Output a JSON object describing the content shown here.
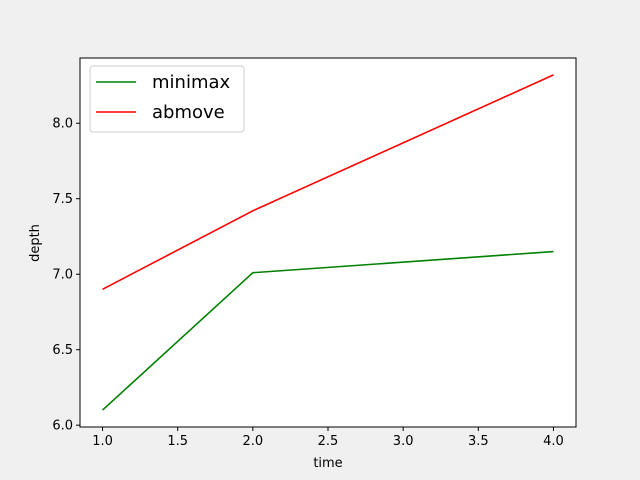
{
  "chart_data": {
    "type": "line",
    "title": "",
    "xlabel": "time",
    "ylabel": "depth",
    "x": [
      1.0,
      2.0,
      4.0
    ],
    "series": [
      {
        "name": "minimax",
        "color": "#008000",
        "values": [
          6.1,
          7.01,
          7.15
        ]
      },
      {
        "name": "abmove",
        "color": "#ff0000",
        "values": [
          6.9,
          7.42,
          8.32
        ]
      }
    ],
    "xlim": [
      0.85,
      4.15
    ],
    "ylim": [
      5.988,
      8.432
    ],
    "xticks": [
      1.0,
      1.5,
      2.0,
      2.5,
      3.0,
      3.5,
      4.0
    ],
    "xtick_labels": [
      "1.0",
      "1.5",
      "2.0",
      "2.5",
      "3.0",
      "3.5",
      "4.0"
    ],
    "yticks": [
      6.0,
      6.5,
      7.0,
      7.5,
      8.0
    ],
    "ytick_labels": [
      "6.0",
      "6.5",
      "7.0",
      "7.5",
      "8.0"
    ],
    "grid": false,
    "legend": {
      "placement": "top-left"
    }
  }
}
